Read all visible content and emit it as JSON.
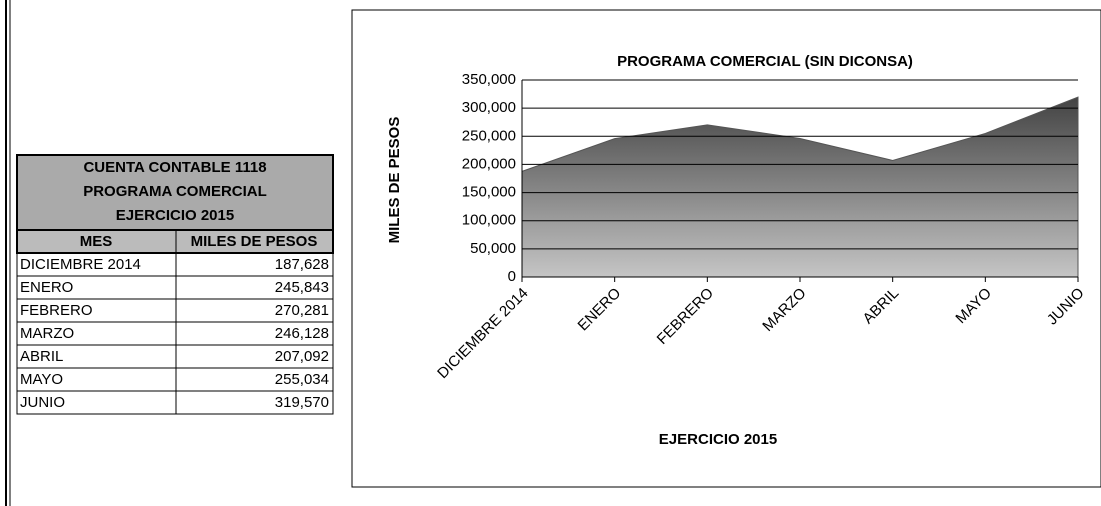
{
  "table": {
    "title": [
      "CUENTA CONTABLE 1118",
      "PROGRAMA COMERCIAL",
      "EJERCICIO 2015"
    ],
    "header": [
      "MES",
      "MILES DE PESOS"
    ],
    "rows": [
      [
        "DICIEMBRE 2014",
        "187,628"
      ],
      [
        "ENERO",
        "245,843"
      ],
      [
        "FEBRERO",
        "270,281"
      ],
      [
        "MARZO",
        "246,128"
      ],
      [
        "ABRIL",
        "207,092"
      ],
      [
        "MAYO",
        "255,034"
      ],
      [
        "JUNIO",
        "319,570"
      ]
    ]
  },
  "chart_data": {
    "type": "area",
    "title": "PROGRAMA COMERCIAL (SIN DICONSA)",
    "x_label": "EJERCICIO 2015",
    "y_label": "MILES DE PESOS",
    "categories": [
      "DICIEMBRE 2014",
      "ENERO",
      "FEBRERO",
      "MARZO",
      "ABRIL",
      "MAYO",
      "JUNIO"
    ],
    "values": [
      187628,
      245843,
      270281,
      246128,
      207092,
      255034,
      319570
    ],
    "color": "#555555",
    "ylim": [
      0,
      350000
    ],
    "yticks": [
      0,
      {
        "value": 50000,
        "label": "50,000"
      },
      {
        "value": 100000,
        "label": "100,000"
      },
      {
        "value": 150000,
        "label": "150,000"
      },
      {
        "value": 200000,
        "label": "200,000"
      },
      {
        "value": 250000,
        "label": "250,000"
      },
      {
        "value": 300000,
        "label": "300,000"
      },
      {
        "value": 350000,
        "label": "350,000"
      }
    ],
    "grid": true
  }
}
